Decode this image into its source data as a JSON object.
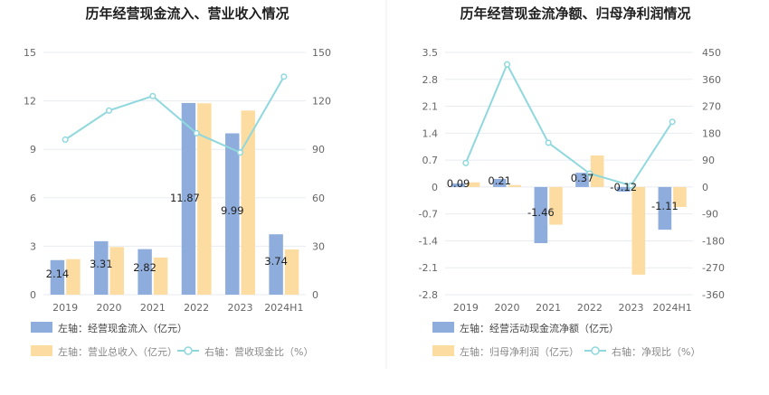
{
  "chart_data": [
    {
      "type": "bar",
      "title": "历年经营现金流入、营业收入情况",
      "categories": [
        "2019",
        "2020",
        "2021",
        "2022",
        "2023",
        "2024H1"
      ],
      "left_axis": {
        "ticks": [
          "0",
          "3",
          "6",
          "9",
          "12",
          "15"
        ],
        "ylim": [
          0,
          15
        ]
      },
      "right_axis": {
        "ticks": [
          "0",
          "30",
          "60",
          "90",
          "120",
          "150"
        ],
        "ylim": [
          0,
          150
        ]
      },
      "series": [
        {
          "name": "左轴：经营现金流入（亿元）",
          "kind": "bar",
          "axis": "left",
          "color": "#8eaddc",
          "values": [
            2.14,
            3.31,
            2.82,
            11.87,
            9.99,
            3.74
          ],
          "labels": [
            "2.14",
            "3.31",
            "2.82",
            "11.87",
            "9.99",
            "3.74"
          ]
        },
        {
          "name": "左轴：营业总收入（亿元）",
          "kind": "bar",
          "axis": "left",
          "color": "#fddca2",
          "values": [
            2.2,
            2.95,
            2.3,
            11.85,
            11.4,
            2.8
          ]
        },
        {
          "name": "右轴：营收现金比（%）",
          "kind": "line",
          "axis": "right",
          "color": "#8fd8dd",
          "values": [
            96,
            114,
            123,
            100,
            88,
            135
          ]
        }
      ],
      "legend_position": "bottom-left",
      "grid": true
    },
    {
      "type": "bar",
      "title": "历年经营现金流净额、归母净利润情况",
      "categories": [
        "2019",
        "2020",
        "2021",
        "2022",
        "2023",
        "2024H1"
      ],
      "left_axis": {
        "ticks": [
          "3.5",
          "2.8",
          "2.1",
          "1.4",
          "0.7",
          "0",
          "-0.7",
          "-1.4",
          "-2.1",
          "-2.8"
        ],
        "ylim": [
          -2.8,
          3.5
        ]
      },
      "right_axis": {
        "ticks": [
          "450",
          "360",
          "270",
          "180",
          "90",
          "0",
          "-90",
          "-180",
          "-270",
          "-360"
        ],
        "ylim": [
          -360,
          450
        ]
      },
      "series": [
        {
          "name": "左轴：经营活动现金流净额（亿元）",
          "kind": "bar",
          "axis": "left",
          "color": "#8eaddc",
          "values": [
            0.09,
            0.21,
            -1.46,
            0.37,
            -0.12,
            -1.11
          ],
          "labels": [
            "0.09",
            "0.21",
            "-1.46",
            "0.37",
            "-0.12",
            "-1.11"
          ]
        },
        {
          "name": "左轴：归母净利润（亿元）",
          "kind": "bar",
          "axis": "left",
          "color": "#fddca2",
          "values": [
            0.12,
            0.05,
            -0.98,
            0.82,
            -2.28,
            -0.52
          ]
        },
        {
          "name": "右轴：净现比（%）",
          "kind": "line",
          "axis": "right",
          "color": "#8fd8dd",
          "values": [
            80,
            410,
            148,
            45,
            5,
            218
          ]
        }
      ],
      "legend_position": "bottom-left",
      "grid": true
    }
  ]
}
